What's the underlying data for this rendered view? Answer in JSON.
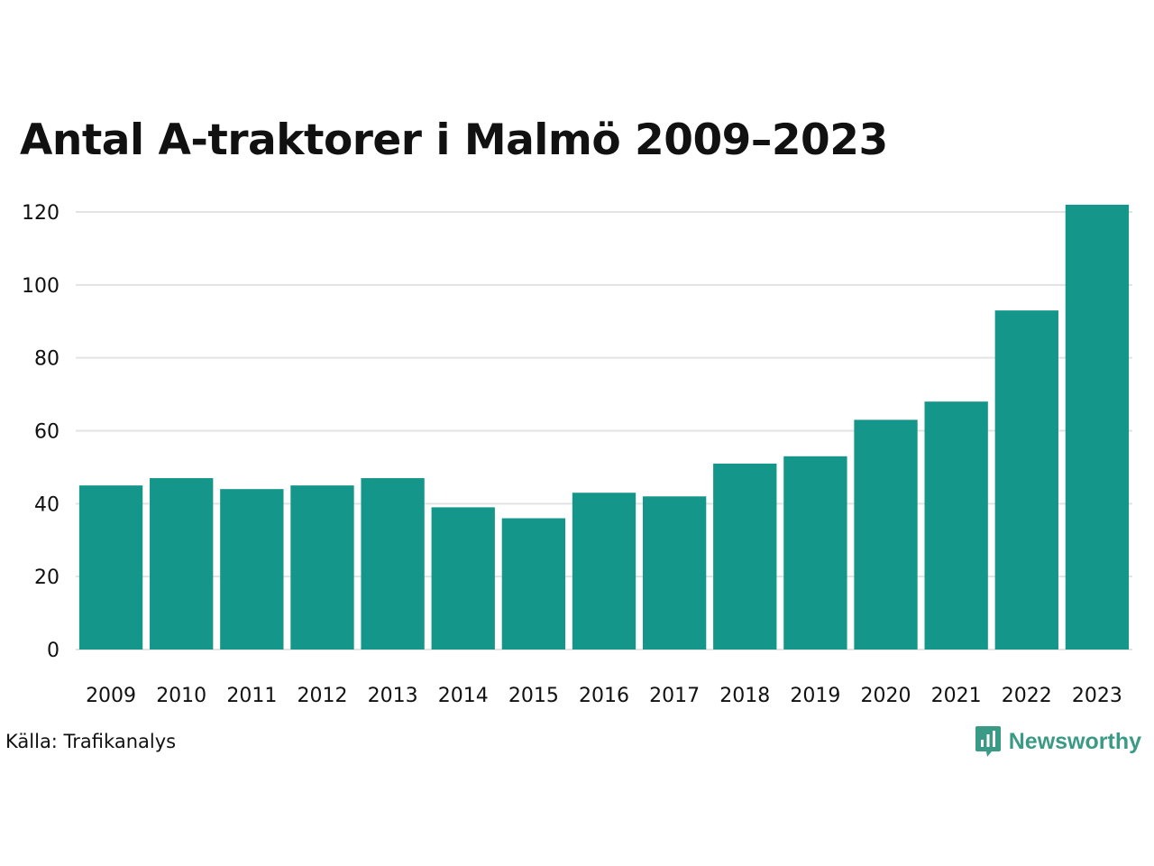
{
  "colors": {
    "bar": "#15968a",
    "grid": "#e3e3e3",
    "text": "#111111",
    "brand": "#3a9a86"
  },
  "source": "Källa: Trafikanalys",
  "brand": {
    "name": "Newsworthy",
    "icon": "newsworthy-logo-icon"
  },
  "chart_data": {
    "type": "bar",
    "title": "Antal A-traktorer i Malmö 2009–2023",
    "xlabel": "",
    "ylabel": "",
    "categories": [
      "2009",
      "2010",
      "2011",
      "2012",
      "2013",
      "2014",
      "2015",
      "2016",
      "2017",
      "2018",
      "2019",
      "2020",
      "2021",
      "2022",
      "2023"
    ],
    "values": [
      45,
      47,
      44,
      45,
      47,
      39,
      36,
      43,
      42,
      51,
      53,
      63,
      68,
      93,
      122
    ],
    "ylim": [
      0,
      120
    ],
    "yticks": [
      0,
      20,
      40,
      60,
      80,
      100,
      120
    ],
    "grid": true,
    "legend": "none"
  }
}
